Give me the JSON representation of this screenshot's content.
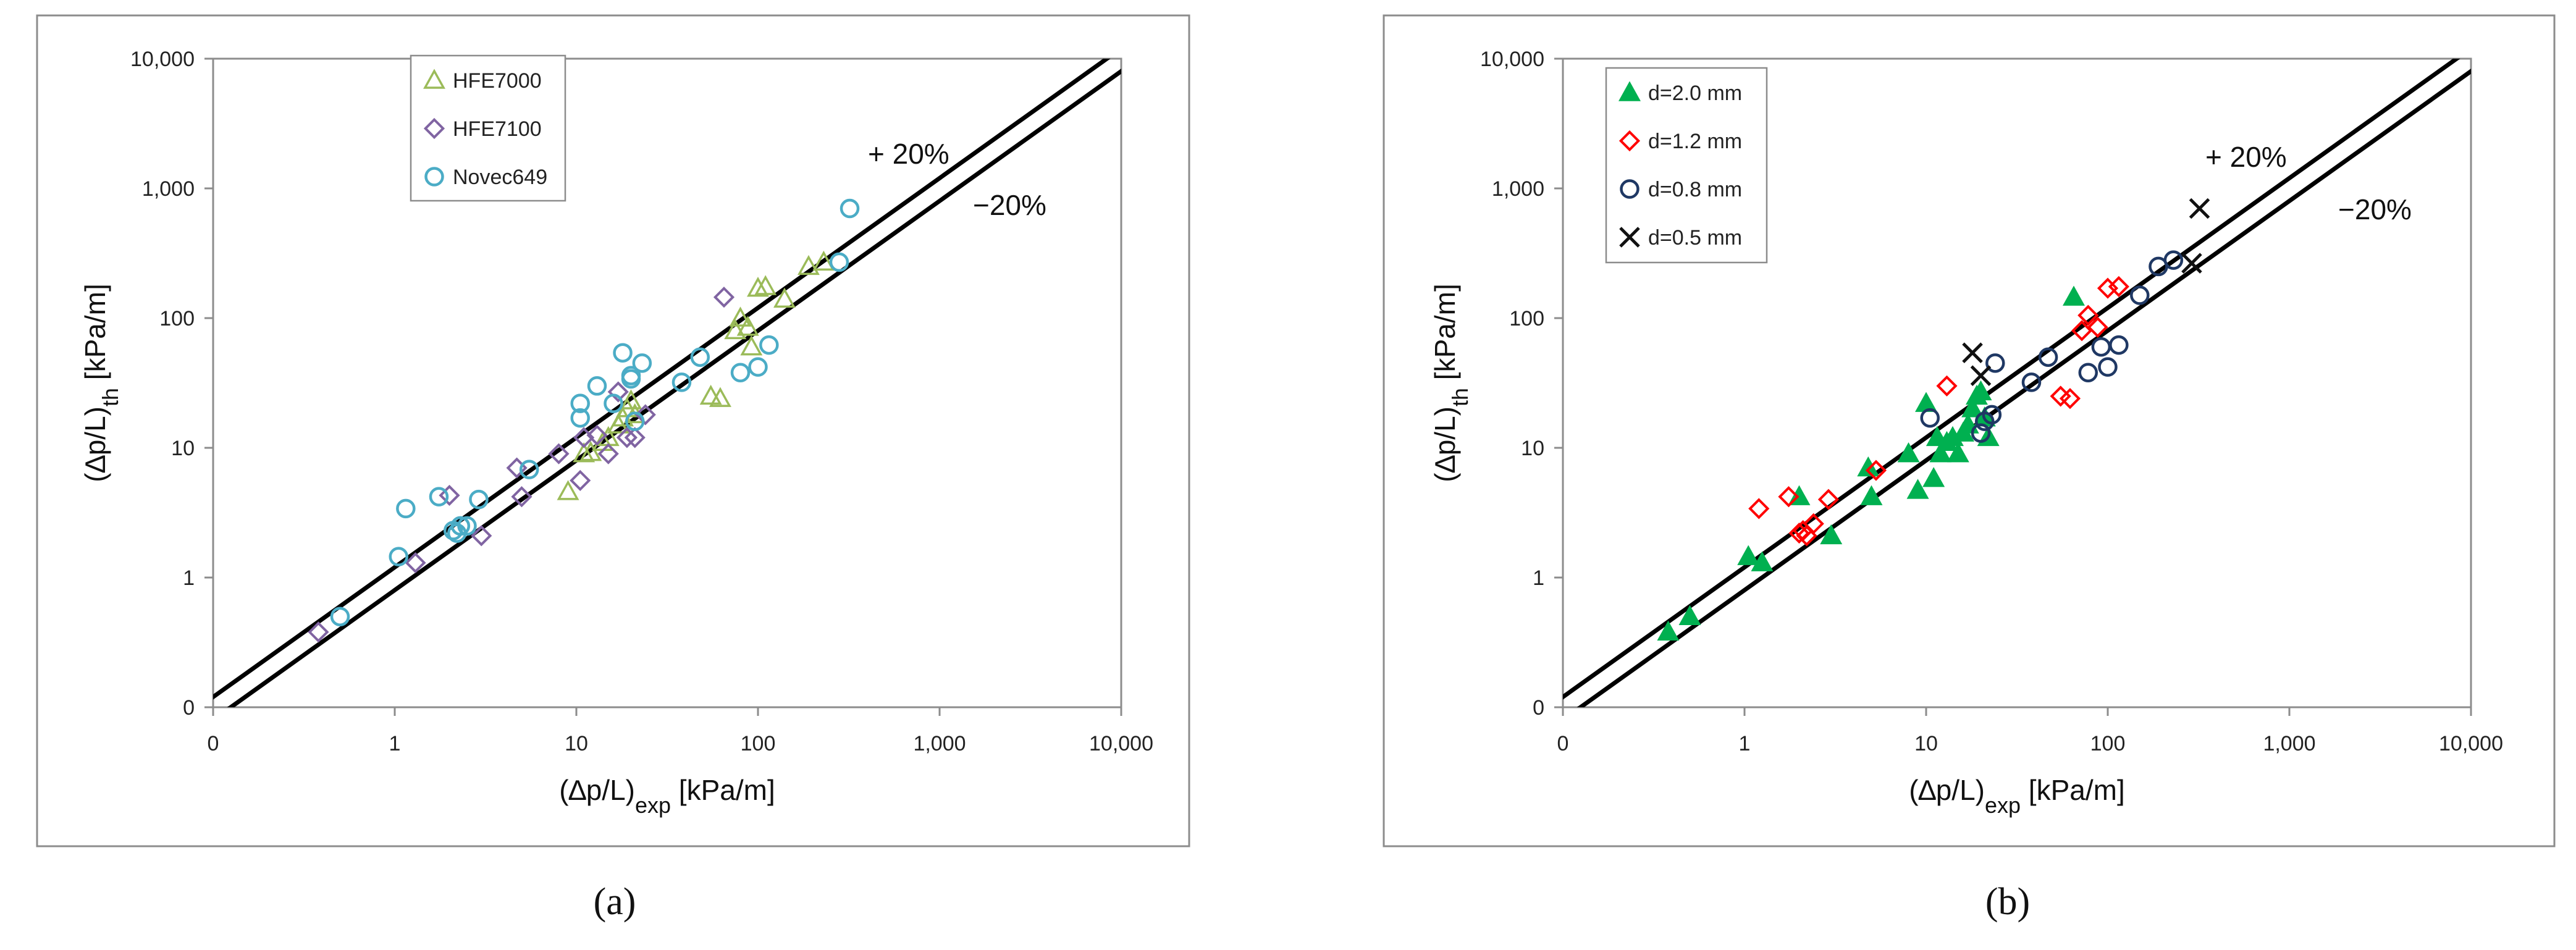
{
  "chart_data": [
    {
      "type": "scatter",
      "panel_label": "(a)",
      "x_scale": "log",
      "y_scale": "log",
      "xlim": [
        0.1,
        10000
      ],
      "ylim": [
        0.1,
        10000
      ],
      "x_ticks": [
        {
          "v": 0.1,
          "label": "0"
        },
        {
          "v": 1,
          "label": "1"
        },
        {
          "v": 10,
          "label": "10"
        },
        {
          "v": 100,
          "label": "100"
        },
        {
          "v": 1000,
          "label": "1,000"
        },
        {
          "v": 10000,
          "label": "10,000"
        }
      ],
      "y_ticks": [
        {
          "v": 0.1,
          "label": "0"
        },
        {
          "v": 1,
          "label": "1"
        },
        {
          "v": 10,
          "label": "10"
        },
        {
          "v": 100,
          "label": "100"
        },
        {
          "v": 1000,
          "label": "1,000"
        },
        {
          "v": 10000,
          "label": "10,000"
        }
      ],
      "xlabel": {
        "main": "(∆p/L)",
        "sub": "exp",
        "unit": " [kPa/m]"
      },
      "ylabel": {
        "main": "(∆p/L)",
        "sub": "th",
        "unit": " [kPa/m]"
      },
      "grid": false,
      "legend_position": "top-left",
      "bands": [
        {
          "label": "+ 20%",
          "factor": 1.2
        },
        {
          "label": "−20%",
          "factor": 0.8
        }
      ],
      "series": [
        {
          "name": "HFE7000",
          "marker": "triangle-open",
          "color": "#9bbb59",
          "points": [
            [
              9,
              4.6
            ],
            [
              11,
              9
            ],
            [
              12,
              9.2
            ],
            [
              15,
              12
            ],
            [
              17,
              15
            ],
            [
              19,
              20
            ],
            [
              20,
              23
            ],
            [
              18,
              17
            ],
            [
              14,
              11
            ],
            [
              21,
              18
            ],
            [
              55,
              25
            ],
            [
              62,
              24
            ],
            [
              75,
              80
            ],
            [
              80,
              100
            ],
            [
              88,
              85
            ],
            [
              92,
              60
            ],
            [
              100,
              170
            ],
            [
              110,
              175
            ],
            [
              140,
              140
            ],
            [
              190,
              250
            ],
            [
              230,
              270
            ]
          ]
        },
        {
          "name": "HFE7100",
          "marker": "diamond-open",
          "color": "#8064a2",
          "points": [
            [
              0.38,
              0.38
            ],
            [
              1.3,
              1.3
            ],
            [
              2.0,
              4.3
            ],
            [
              3.0,
              2.1
            ],
            [
              4.7,
              7
            ],
            [
              5.0,
              4.2
            ],
            [
              8,
              9
            ],
            [
              10.5,
              5.6
            ],
            [
              11,
              12
            ],
            [
              13,
              12.5
            ],
            [
              15,
              9
            ],
            [
              17,
              27
            ],
            [
              19,
              12
            ],
            [
              21,
              12
            ],
            [
              24,
              18
            ],
            [
              65,
              145
            ]
          ]
        },
        {
          "name": "Novec649",
          "marker": "circle-open",
          "color": "#4bacc6",
          "points": [
            [
              0.5,
              0.5
            ],
            [
              1.05,
              1.45
            ],
            [
              1.15,
              3.4
            ],
            [
              1.75,
              4.2
            ],
            [
              2.1,
              2.3
            ],
            [
              2.2,
              2.2
            ],
            [
              2.3,
              2.5
            ],
            [
              2.5,
              2.5
            ],
            [
              2.9,
              4.0
            ],
            [
              5.5,
              6.8
            ],
            [
              10.5,
              17
            ],
            [
              10.5,
              22
            ],
            [
              13,
              30
            ],
            [
              16,
              22
            ],
            [
              18,
              54
            ],
            [
              20,
              34
            ],
            [
              20,
              36
            ],
            [
              21,
              16
            ],
            [
              23,
              45
            ],
            [
              38,
              32
            ],
            [
              48,
              50
            ],
            [
              80,
              38
            ],
            [
              100,
              42
            ],
            [
              115,
              62
            ],
            [
              280,
              270
            ],
            [
              320,
              700
            ]
          ]
        }
      ]
    },
    {
      "type": "scatter",
      "panel_label": "(b)",
      "x_scale": "log",
      "y_scale": "log",
      "xlim": [
        0.1,
        10000
      ],
      "ylim": [
        0.1,
        10000
      ],
      "x_ticks": [
        {
          "v": 0.1,
          "label": "0"
        },
        {
          "v": 1,
          "label": "1"
        },
        {
          "v": 10,
          "label": "10"
        },
        {
          "v": 100,
          "label": "100"
        },
        {
          "v": 1000,
          "label": "1,000"
        },
        {
          "v": 10000,
          "label": "10,000"
        }
      ],
      "y_ticks": [
        {
          "v": 0.1,
          "label": "0"
        },
        {
          "v": 1,
          "label": "1"
        },
        {
          "v": 10,
          "label": "10"
        },
        {
          "v": 100,
          "label": "100"
        },
        {
          "v": 1000,
          "label": "1,000"
        },
        {
          "v": 10000,
          "label": "10,000"
        }
      ],
      "xlabel": {
        "main": "(∆p/L)",
        "sub": "exp",
        "unit": " [kPa/m]"
      },
      "ylabel": {
        "main": "(∆p/L)",
        "sub": "th",
        "unit": " [kPa/m]"
      },
      "grid": false,
      "legend_position": "top-left",
      "bands": [
        {
          "label": "+ 20%",
          "factor": 1.2
        },
        {
          "label": "−20%",
          "factor": 0.8
        }
      ],
      "series": [
        {
          "name": "d=2.0 mm",
          "marker": "triangle-filled",
          "color": "#00b050",
          "points": [
            [
              0.38,
              0.38
            ],
            [
              0.5,
              0.5
            ],
            [
              1.05,
              1.45
            ],
            [
              1.25,
              1.3
            ],
            [
              2.0,
              4.2
            ],
            [
              3.0,
              2.1
            ],
            [
              4.8,
              7
            ],
            [
              5.0,
              4.2
            ],
            [
              8,
              9
            ],
            [
              9,
              4.7
            ],
            [
              10,
              22
            ],
            [
              11,
              5.8
            ],
            [
              11.5,
              12
            ],
            [
              12,
              9
            ],
            [
              13,
              11
            ],
            [
              14,
              12
            ],
            [
              15,
              9
            ],
            [
              16,
              13
            ],
            [
              17,
              15
            ],
            [
              18,
              20
            ],
            [
              19,
              25
            ],
            [
              20,
              27
            ],
            [
              21,
              17
            ],
            [
              22,
              12
            ],
            [
              65,
              145
            ]
          ]
        },
        {
          "name": "d=1.2 mm",
          "marker": "diamond-open",
          "color": "#ff0000",
          "points": [
            [
              1.2,
              3.4
            ],
            [
              1.75,
              4.2
            ],
            [
              2.0,
              2.2
            ],
            [
              2.1,
              2.3
            ],
            [
              2.2,
              2.1
            ],
            [
              2.4,
              2.6
            ],
            [
              2.9,
              4.0
            ],
            [
              5.3,
              6.7
            ],
            [
              13,
              30
            ],
            [
              55,
              25
            ],
            [
              62,
              24
            ],
            [
              72,
              80
            ],
            [
              78,
              105
            ],
            [
              88,
              85
            ],
            [
              100,
              170
            ],
            [
              115,
              175
            ]
          ]
        },
        {
          "name": "d=0.8 mm",
          "marker": "circle-open",
          "color": "#1f3864",
          "points": [
            [
              10.5,
              17
            ],
            [
              20,
              13
            ],
            [
              21,
              16
            ],
            [
              23,
              18
            ],
            [
              24,
              45
            ],
            [
              38,
              32
            ],
            [
              47,
              50
            ],
            [
              78,
              38
            ],
            [
              92,
              60
            ],
            [
              100,
              42
            ],
            [
              115,
              62
            ],
            [
              150,
              150
            ],
            [
              190,
              250
            ],
            [
              230,
              280
            ]
          ]
        },
        {
          "name": "d=0.5 mm",
          "marker": "x",
          "color": "#111111",
          "points": [
            [
              18,
              54
            ],
            [
              20,
              36
            ],
            [
              290,
              265
            ],
            [
              320,
              700
            ]
          ]
        }
      ]
    }
  ]
}
